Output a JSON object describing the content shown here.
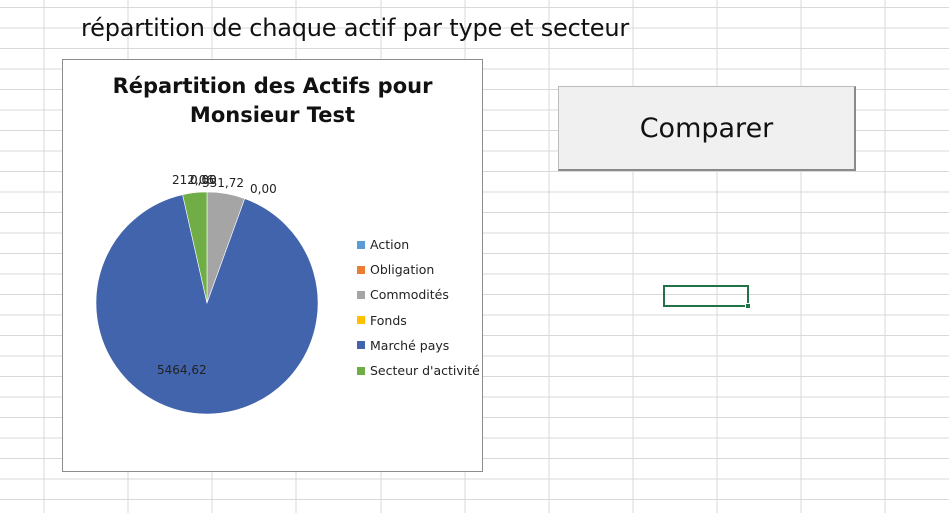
{
  "sheet": {
    "heading": "répartition de chaque actif par type et secteur"
  },
  "button": {
    "label": "Comparer"
  },
  "chart_data": {
    "type": "pie",
    "title_lines": [
      "Répartition des Actifs pour",
      "Monsieur Test"
    ],
    "categories": [
      "Action",
      "Obligation",
      "Commodités",
      "Fonds",
      "Marché pays",
      "Secteur d'activité"
    ],
    "values": [
      0,
      0,
      331.72,
      0,
      5464.62,
      212.06
    ],
    "value_labels": [
      "0,00",
      "0,00",
      "331,72",
      "0,00",
      "5464,62",
      "212,06"
    ],
    "colors": [
      "#5b9bd5",
      "#ed7d31",
      "#a5a5a5",
      "#ffc000",
      "#4264ad",
      "#70ad47"
    ],
    "legend_position": "right"
  }
}
